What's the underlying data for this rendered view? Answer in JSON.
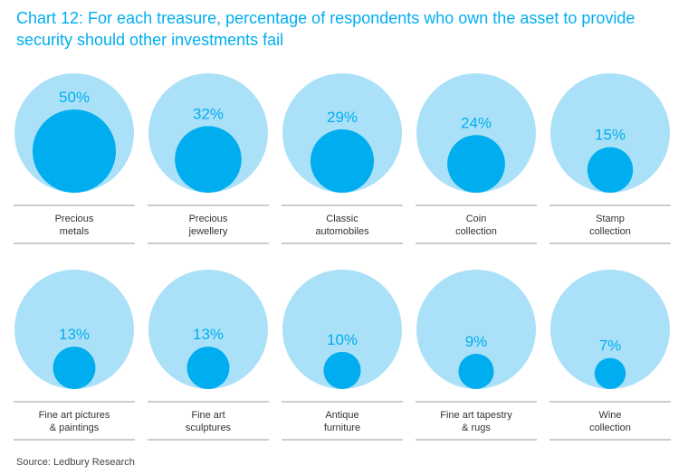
{
  "chart_data": {
    "type": "bubble",
    "title": "Chart 12: For each treasure, percentage of respondents who own the asset to provide security should other investments fail",
    "unit": "%",
    "max_value": 100,
    "categories": [
      {
        "label_lines": [
          "Precious",
          "metals"
        ],
        "value": 50
      },
      {
        "label_lines": [
          "Precious",
          "jewellery"
        ],
        "value": 32
      },
      {
        "label_lines": [
          "Classic",
          "automobiles"
        ],
        "value": 29
      },
      {
        "label_lines": [
          "Coin",
          "collection"
        ],
        "value": 24
      },
      {
        "label_lines": [
          "Stamp",
          "collection"
        ],
        "value": 15
      },
      {
        "label_lines": [
          "Fine art pictures",
          "& paintings"
        ],
        "value": 13
      },
      {
        "label_lines": [
          "Fine art",
          "sculptures"
        ],
        "value": 13
      },
      {
        "label_lines": [
          "Antique",
          "furniture"
        ],
        "value": 10
      },
      {
        "label_lines": [
          "Fine art tapestry",
          "& rugs"
        ],
        "value": 9
      },
      {
        "label_lines": [
          "Wine",
          "collection"
        ],
        "value": 7
      }
    ],
    "colors": {
      "outer_circle": "#abe1f8",
      "inner_circle": "#00aeef",
      "value_label": "#00aeef",
      "divider": "#999999",
      "category_label": "#333333"
    }
  },
  "source": "Source: Ledbury Research"
}
